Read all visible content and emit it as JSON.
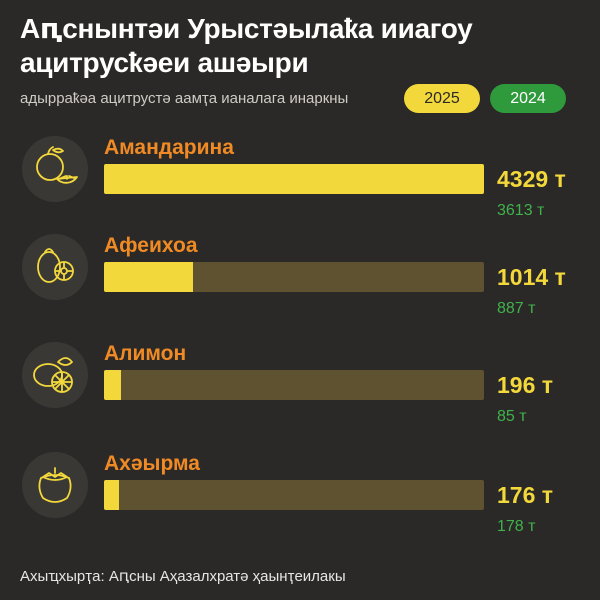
{
  "title": "Аԥснынтәи Урыстәылаҟа ииагоу ацитрусҟәеи ашәыри",
  "subtitle": "адырраҟәа ацитрустә аамҭа ианалага инаркны",
  "legend": {
    "y2025": "2025",
    "y2024": "2024"
  },
  "colors": {
    "y2025": "#f3d83c",
    "y2024": "#2f9a3b",
    "label": "#f08a24",
    "background": "#2b2927"
  },
  "source": "Ахыҵхырҭа: Аԥсны Аҳазалхратә ҳаынҭеилакы",
  "chart_data": {
    "type": "bar",
    "title": "Аԥснынтәи Урыстәылаҟа ииагоу ацитрусҟәеи ашәыри",
    "subtitle": "адырраҟәа ацитрустә аамҭа ианалага инаркны",
    "categories": [
      "Амандарина",
      "Афеихоа",
      "Алимон",
      "Ахәырма"
    ],
    "icons": [
      "mandarin-icon",
      "feijoa-icon",
      "lemon-icon",
      "persimmon-icon"
    ],
    "series": [
      {
        "name": "2025",
        "values": [
          4329,
          1014,
          196,
          176
        ]
      },
      {
        "name": "2024",
        "values": [
          3613,
          887,
          85,
          178
        ]
      }
    ],
    "labels_2025": [
      "4329 т",
      "1014 т",
      "196 т",
      "176 т"
    ],
    "labels_2024": [
      "3613 т",
      "887 т",
      "85 т",
      "178 т"
    ],
    "xmax": 4329,
    "unit": "т"
  }
}
